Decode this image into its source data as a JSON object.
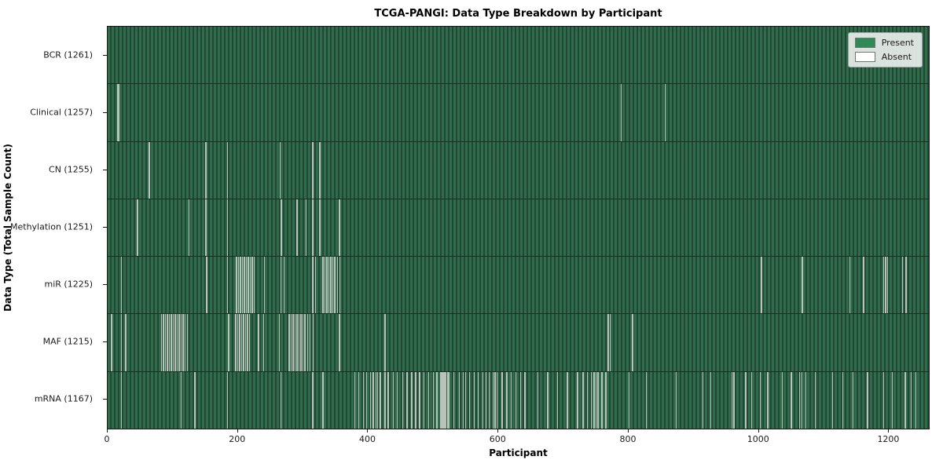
{
  "colors": {
    "present_fill": "#2e8b57",
    "bar_stripe_light": "#306b4c",
    "bar_stripe_dark": "#204835",
    "absent_line": "#b9c3ba",
    "row_separator": "#163121",
    "axis": "#1a1a1a",
    "legend_bg": "#eef1ee"
  },
  "chart_data": {
    "type": "heatmap",
    "title": "TCGA-PANGI: Data Type Breakdown by Participant",
    "xlabel": "Participant",
    "ylabel": "Data Type (Total Sample Count)",
    "x_ticks": [
      0,
      200,
      400,
      600,
      800,
      1000,
      1200
    ],
    "n_participants": 1261,
    "legend_position": "upper right",
    "grid": false,
    "legend": {
      "items": [
        {
          "label": "Present",
          "color": "#2e8b57"
        },
        {
          "label": "Absent",
          "color": "#ffffff"
        }
      ]
    },
    "rows": [
      {
        "data_type": "BCR",
        "label": "BCR (1261)",
        "present_count": 1261,
        "absent_count": 0,
        "absent_positions": []
      },
      {
        "data_type": "Clinical",
        "label": "Clinical (1257)",
        "present_count": 1257,
        "absent_count": 4,
        "absent_positions": [
          15,
          17,
          788,
          855
        ]
      },
      {
        "data_type": "CN",
        "label": "CN (1255)",
        "present_count": 1255,
        "absent_count": 6,
        "absent_positions": [
          63,
          150,
          183,
          264,
          314,
          325
        ]
      },
      {
        "data_type": "Methylation",
        "label": "Methylation (1251)",
        "present_count": 1251,
        "absent_count": 10,
        "absent_positions": [
          45,
          124,
          150,
          183,
          266,
          290,
          304,
          314,
          325,
          355
        ]
      },
      {
        "data_type": "miR",
        "label": "miR (1225)",
        "present_count": 1225,
        "absent_count": 36,
        "absent_positions": [
          20,
          151,
          183,
          197,
          200,
          203,
          206,
          209,
          212,
          215,
          218,
          221,
          224,
          240,
          265,
          270,
          314,
          318,
          330,
          333,
          336,
          339,
          342,
          345,
          348,
          352,
          356,
          1003,
          1066,
          1139,
          1160,
          1191,
          1194,
          1197,
          1220,
          1225
        ]
      },
      {
        "data_type": "MAF",
        "label": "MAF (1215)",
        "present_count": 1215,
        "absent_count": 46,
        "absent_positions": [
          5,
          20,
          27,
          82,
          85,
          88,
          91,
          94,
          97,
          100,
          103,
          106,
          109,
          112,
          115,
          118,
          122,
          185,
          196,
          199,
          202,
          205,
          208,
          211,
          214,
          217,
          231,
          239,
          263,
          278,
          281,
          284,
          287,
          290,
          293,
          296,
          299,
          302,
          306,
          310,
          315,
          355,
          425,
          768,
          771,
          805
        ]
      },
      {
        "data_type": "mRNA",
        "label": "mRNA (1167)",
        "present_count": 1167,
        "absent_count": 94,
        "absent_positions": [
          20,
          112,
          133,
          183,
          265,
          314,
          330,
          379,
          385,
          392,
          397,
          403,
          407,
          411,
          414,
          418,
          425,
          430,
          438,
          444,
          452,
          459,
          466,
          472,
          478,
          485,
          492,
          499,
          505,
          511,
          513,
          515,
          517,
          519,
          521,
          523,
          531,
          539,
          545,
          549,
          555,
          562,
          568,
          575,
          580,
          585,
          591,
          594,
          597,
          605,
          612,
          619,
          626,
          633,
          640,
          660,
          675,
          690,
          705,
          721,
          729,
          736,
          742,
          746,
          749,
          752,
          758,
          764,
          800,
          826,
          872,
          913,
          925,
          958,
          961,
          979,
          988,
          1001,
          1013,
          1035,
          1049,
          1062,
          1065,
          1071,
          1086,
          1112,
          1128,
          1144,
          1166,
          1191,
          1204,
          1224,
          1233,
          1240
        ]
      }
    ]
  }
}
